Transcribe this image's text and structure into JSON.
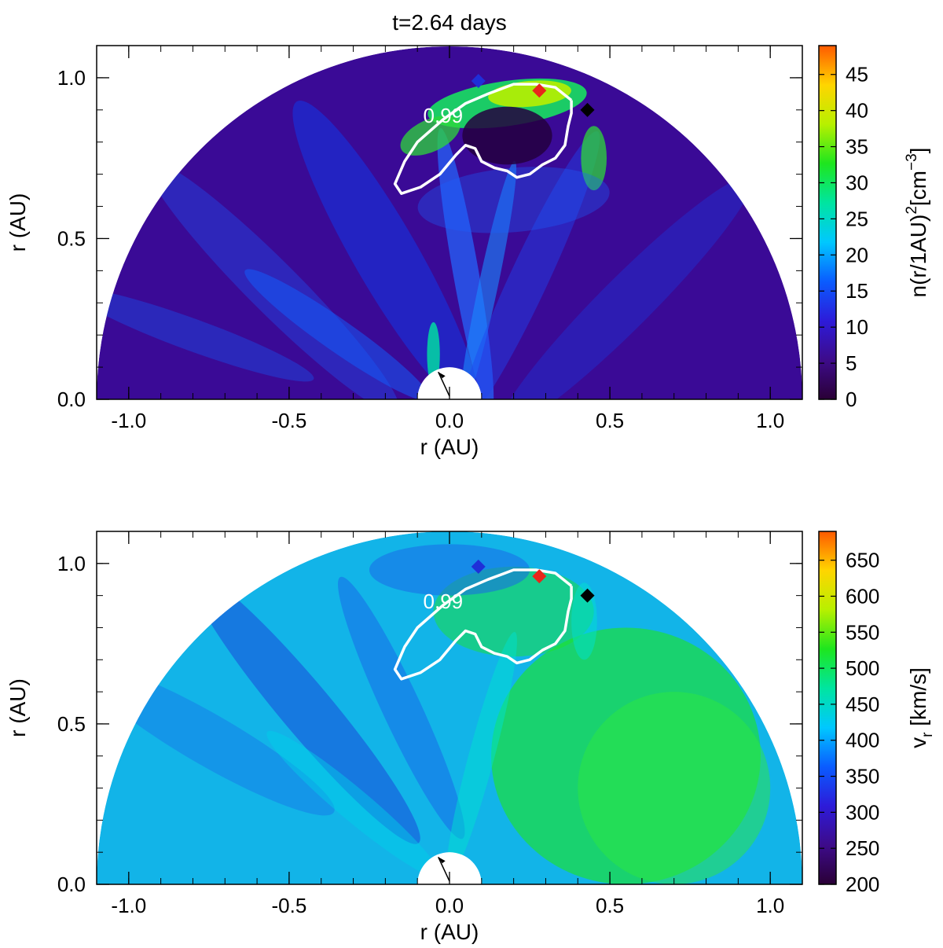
{
  "figure_title": "t=2.64 days",
  "chart_data": [
    {
      "type": "heatmap",
      "geometry": "polar half-disc (meridional plane)",
      "title": "t=2.64 days",
      "xlabel": "r (AU)",
      "ylabel": "r (AU)",
      "xlim": [
        -1.1,
        1.1
      ],
      "ylim": [
        0.0,
        1.1
      ],
      "xticks": [
        "-1.0",
        "-0.5",
        "0.0",
        "0.5",
        "1.0"
      ],
      "yticks": [
        "0.0",
        "0.5",
        "1.0"
      ],
      "colorbar": {
        "label": "n(r/1AU)",
        "label_sup": "2",
        "label_rest": "[cm",
        "label_rest_sup": "−3",
        "label_end": "]",
        "range": [
          0,
          49
        ],
        "ticks": [
          "0",
          "5",
          "10",
          "15",
          "20",
          "25",
          "30",
          "35",
          "40",
          "45"
        ],
        "colormap": [
          "#2a0036",
          "#3d0b8a",
          "#2d1bd9",
          "#0a5cff",
          "#00c8ff",
          "#00e5a0",
          "#1ee61e",
          "#b8f000",
          "#ffd500",
          "#ff5a00"
        ]
      },
      "field_background": "#3a0a96",
      "contour": {
        "label": "0.99",
        "color": "#ffffff"
      },
      "markers": [
        {
          "name": "blue",
          "x": 0.09,
          "y": 0.99,
          "color": "#1f2fd8"
        },
        {
          "name": "red",
          "x": 0.28,
          "y": 0.96,
          "color": "#e8261b"
        },
        {
          "name": "black",
          "x": 0.43,
          "y": 0.9,
          "color": "#000000"
        }
      ],
      "inner_boundary_radius": 0.1
    },
    {
      "type": "heatmap",
      "geometry": "polar half-disc (meridional plane)",
      "xlabel": "r (AU)",
      "ylabel": "r (AU)",
      "xlim": [
        -1.1,
        1.1
      ],
      "ylim": [
        0.0,
        1.1
      ],
      "xticks": [
        "-1.0",
        "-0.5",
        "0.0",
        "0.5",
        "1.0"
      ],
      "yticks": [
        "0.0",
        "0.5",
        "1.0"
      ],
      "colorbar": {
        "label": "v",
        "label_sub": "r",
        "label_rest": "[km/s]",
        "range": [
          200,
          690
        ],
        "ticks": [
          "200",
          "250",
          "300",
          "350",
          "400",
          "450",
          "500",
          "550",
          "600",
          "650"
        ],
        "colormap": [
          "#2a0036",
          "#3d0b8a",
          "#2d1bd9",
          "#0a5cff",
          "#00c8ff",
          "#00e5a0",
          "#1ee61e",
          "#b8f000",
          "#ffd500",
          "#ff5a00"
        ]
      },
      "field_background": "#12b4e8",
      "contour": {
        "label": "0.99",
        "color": "#ffffff"
      },
      "markers": [
        {
          "name": "blue",
          "x": 0.09,
          "y": 0.99,
          "color": "#1f2fd8"
        },
        {
          "name": "red",
          "x": 0.28,
          "y": 0.96,
          "color": "#e8261b"
        },
        {
          "name": "black",
          "x": 0.43,
          "y": 0.9,
          "color": "#000000"
        }
      ],
      "inner_boundary_radius": 0.1
    }
  ]
}
